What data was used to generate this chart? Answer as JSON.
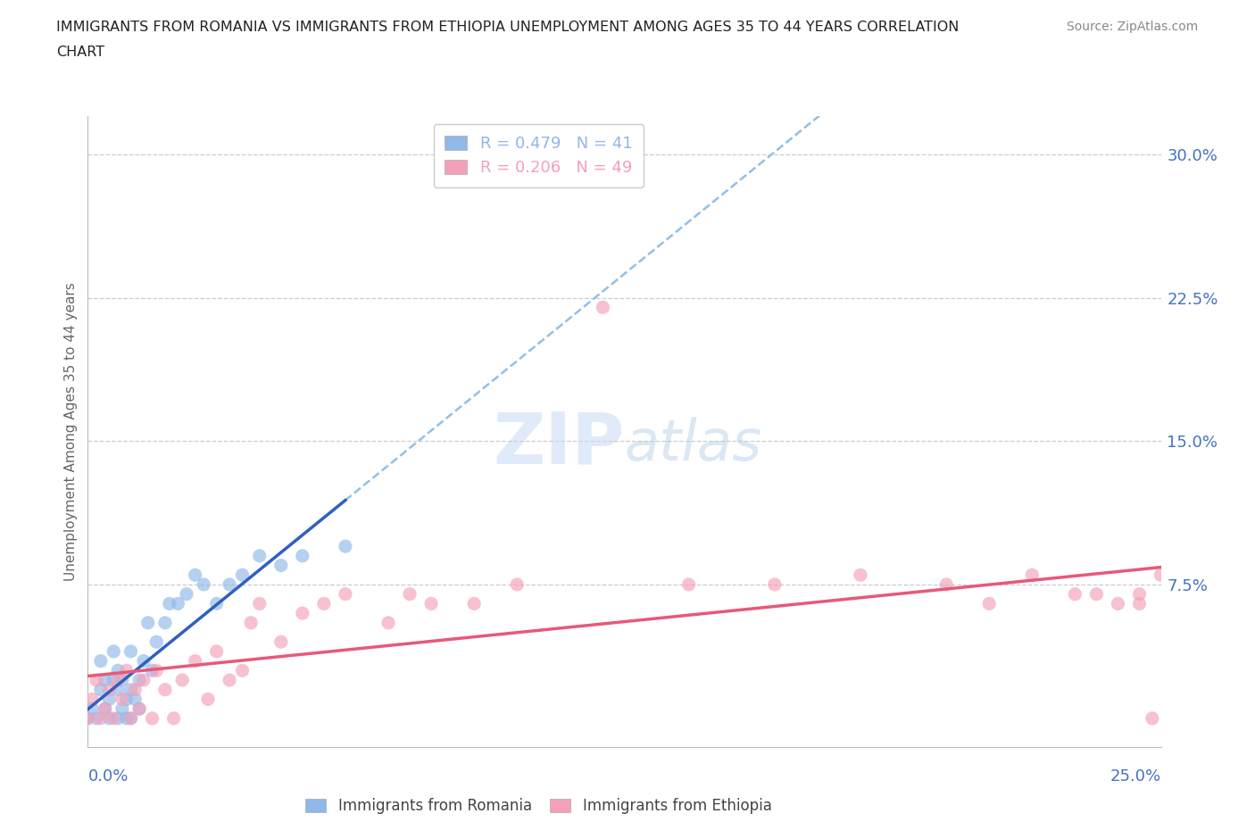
{
  "title_line1": "IMMIGRANTS FROM ROMANIA VS IMMIGRANTS FROM ETHIOPIA UNEMPLOYMENT AMONG AGES 35 TO 44 YEARS CORRELATION",
  "title_line2": "CHART",
  "source": "Source: ZipAtlas.com",
  "ylabel": "Unemployment Among Ages 35 to 44 years",
  "xmin": 0.0,
  "xmax": 0.25,
  "ymin": -0.01,
  "ymax": 0.32,
  "yticks": [
    0.0,
    0.075,
    0.15,
    0.225,
    0.3
  ],
  "ytick_labels": [
    "",
    "7.5%",
    "15.0%",
    "22.5%",
    "30.0%"
  ],
  "romania_R": 0.479,
  "romania_N": 41,
  "ethiopia_R": 0.206,
  "ethiopia_N": 49,
  "romania_color": "#90b8e8",
  "ethiopia_color": "#f4a0b8",
  "romania_line_color": "#3060c0",
  "ethiopia_line_color": "#e85878",
  "romania_dash_color": "#90c0e8",
  "watermark_zip": "ZIP",
  "watermark_atlas": "atlas",
  "legend_romania_label": "Immigrants from Romania",
  "legend_ethiopia_label": "Immigrants from Ethiopia",
  "romania_x": [
    0.0,
    0.001,
    0.002,
    0.003,
    0.003,
    0.004,
    0.004,
    0.005,
    0.005,
    0.006,
    0.006,
    0.007,
    0.007,
    0.007,
    0.008,
    0.008,
    0.009,
    0.009,
    0.01,
    0.01,
    0.01,
    0.011,
    0.012,
    0.012,
    0.013,
    0.014,
    0.015,
    0.016,
    0.018,
    0.019,
    0.021,
    0.023,
    0.025,
    0.027,
    0.03,
    0.033,
    0.036,
    0.04,
    0.045,
    0.05,
    0.06
  ],
  "romania_y": [
    0.005,
    0.01,
    0.005,
    0.02,
    0.035,
    0.01,
    0.025,
    0.005,
    0.015,
    0.025,
    0.04,
    0.005,
    0.02,
    0.03,
    0.01,
    0.025,
    0.005,
    0.015,
    0.005,
    0.02,
    0.04,
    0.015,
    0.01,
    0.025,
    0.035,
    0.055,
    0.03,
    0.045,
    0.055,
    0.065,
    0.065,
    0.07,
    0.08,
    0.075,
    0.065,
    0.075,
    0.08,
    0.09,
    0.085,
    0.09,
    0.095
  ],
  "ethiopia_x": [
    0.0,
    0.001,
    0.002,
    0.003,
    0.004,
    0.005,
    0.006,
    0.007,
    0.008,
    0.009,
    0.01,
    0.011,
    0.012,
    0.013,
    0.015,
    0.016,
    0.018,
    0.02,
    0.022,
    0.025,
    0.028,
    0.03,
    0.033,
    0.036,
    0.038,
    0.04,
    0.045,
    0.05,
    0.055,
    0.06,
    0.07,
    0.075,
    0.08,
    0.09,
    0.1,
    0.12,
    0.14,
    0.16,
    0.18,
    0.2,
    0.21,
    0.22,
    0.23,
    0.235,
    0.24,
    0.245,
    0.245,
    0.248,
    0.25
  ],
  "ethiopia_y": [
    0.005,
    0.015,
    0.025,
    0.005,
    0.01,
    0.02,
    0.005,
    0.025,
    0.015,
    0.03,
    0.005,
    0.02,
    0.01,
    0.025,
    0.005,
    0.03,
    0.02,
    0.005,
    0.025,
    0.035,
    0.015,
    0.04,
    0.025,
    0.03,
    0.055,
    0.065,
    0.045,
    0.06,
    0.065,
    0.07,
    0.055,
    0.07,
    0.065,
    0.065,
    0.075,
    0.22,
    0.075,
    0.075,
    0.08,
    0.075,
    0.065,
    0.08,
    0.07,
    0.07,
    0.065,
    0.07,
    0.065,
    0.005,
    0.08
  ]
}
